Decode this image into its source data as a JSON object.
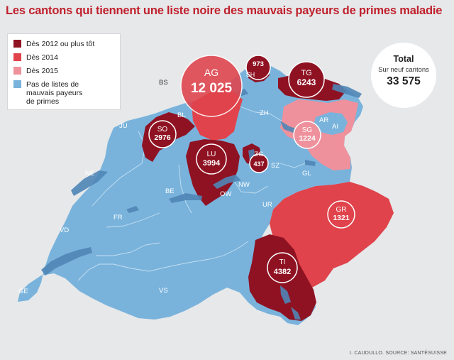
{
  "title": "Les cantons qui tiennent une liste noire des mauvais payeurs de primes maladie",
  "legend": [
    {
      "label": "Dès 2012 ou plus tôt",
      "color": "#8f1223"
    },
    {
      "label": "Dès 2014",
      "color": "#e0434b"
    },
    {
      "label": "Dès 2015",
      "color": "#ee919c"
    },
    {
      "label": "Pas de listes de mauvais payeurs de primes",
      "color": "#79b3dc"
    }
  ],
  "total": {
    "title": "Total",
    "subtitle": "Sur neuf cantons",
    "value": "33 575"
  },
  "cantons_with_lists": [
    {
      "code": "AG",
      "value": "12 025"
    },
    {
      "code": "SH",
      "value": "973"
    },
    {
      "code": "TG",
      "value": "6243"
    },
    {
      "code": "SO",
      "value": "2976"
    },
    {
      "code": "LU",
      "value": "3994"
    },
    {
      "code": "ZG",
      "value": "437"
    },
    {
      "code": "SG",
      "value": "1224"
    },
    {
      "code": "GR",
      "value": "1321"
    },
    {
      "code": "TI",
      "value": "4382"
    }
  ],
  "other_cantons": [
    "BS",
    "BL",
    "JU",
    "ZH",
    "AR",
    "AI",
    "NE",
    "BE",
    "SZ",
    "GL",
    "NW",
    "OW",
    "FR",
    "UR",
    "VD",
    "GE",
    "VS"
  ],
  "credit": "I. CAUDULLO. SOURCE: SANTÉSUISSE"
}
